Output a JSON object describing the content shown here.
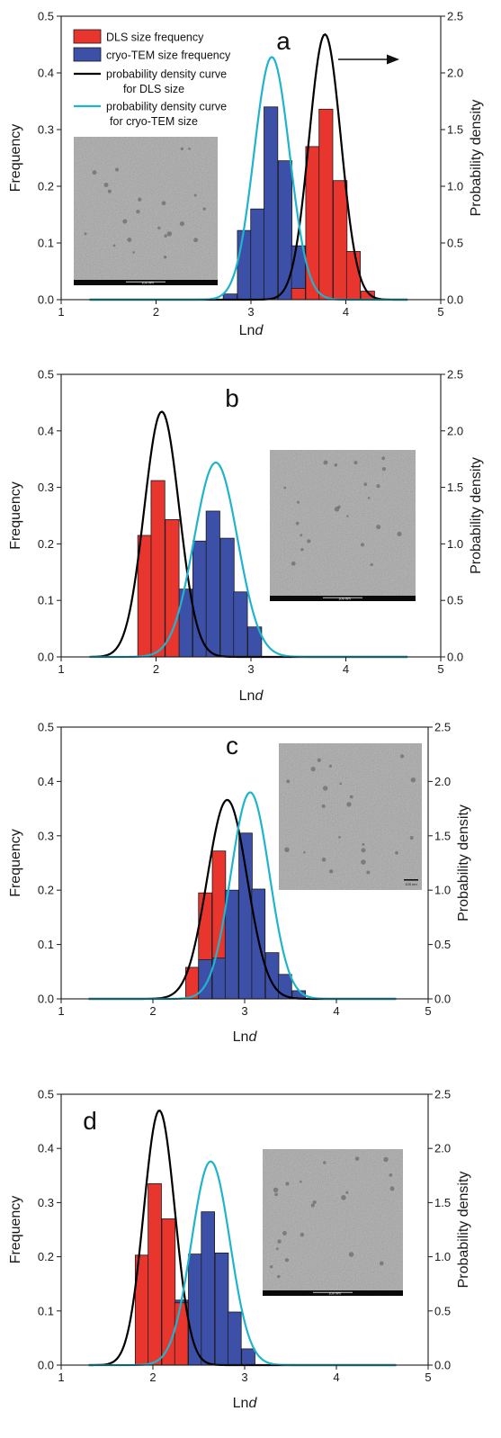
{
  "figure": {
    "colors": {
      "dls_bar": "#e8362e",
      "tem_bar": "#3d50a8",
      "dls_curve": "#000000",
      "tem_curve": "#1fb4cc",
      "bar_edge": "#1a1a1a"
    },
    "legend": [
      {
        "label": "DLS size frequency",
        "kind": "bar",
        "series": "dls"
      },
      {
        "label": "cryo-TEM size frequency",
        "kind": "bar",
        "series": "tem"
      },
      {
        "label": "probability density curve",
        "label2": "for DLS size",
        "kind": "line",
        "series": "dls_curve"
      },
      {
        "label": "probability density curve",
        "label2": "for cryo-TEM size",
        "kind": "line",
        "series": "tem_curve"
      }
    ]
  },
  "chart_data": [
    {
      "panel": "a",
      "type": "bar",
      "xlabel": "Ln",
      "xlabel_italic": "d",
      "ylabel": "Frequency",
      "y2label": "Probability density",
      "xlim": [
        1,
        5
      ],
      "ylim": [
        0,
        0.5
      ],
      "y2lim": [
        0,
        2.5
      ],
      "xticks": [
        "1",
        "2",
        "3",
        "4",
        "5"
      ],
      "yticks": [
        "0.0",
        "0.1",
        "0.2",
        "0.3",
        "0.4",
        "0.5"
      ],
      "y2ticks": [
        "0.0",
        "0.5",
        "1.0",
        "1.5",
        "2.0",
        "2.5"
      ],
      "bin_width": 0.145,
      "series": [
        {
          "name": "cryo-TEM size frequency",
          "kind": "tem",
          "x": [
            2.78,
            2.93,
            3.07,
            3.21,
            3.36,
            3.5,
            3.65
          ],
          "values": [
            0.01,
            0.122,
            0.16,
            0.34,
            0.245,
            0.095,
            0.02
          ]
        },
        {
          "name": "DLS size frequency",
          "kind": "dls",
          "x": [
            3.5,
            3.65,
            3.79,
            3.94,
            4.08,
            4.23
          ],
          "values": [
            0.02,
            0.27,
            0.336,
            0.21,
            0.085,
            0.015
          ]
        }
      ],
      "curves": [
        {
          "name": "probability density curve for DLS size",
          "kind": "dls_curve",
          "mu": 3.78,
          "sigma": 0.168,
          "peak": 2.34,
          "xrange": [
            1.3,
            4.65
          ]
        },
        {
          "name": "probability density curve for cryo-TEM size",
          "kind": "tem_curve",
          "mu": 3.22,
          "sigma": 0.187,
          "peak": 2.14,
          "xrange": [
            1.3,
            4.65
          ]
        }
      ],
      "arrow_direction": "right",
      "legend": true,
      "inset": {
        "position": "left",
        "scale_label": "100 nm",
        "scalebar": "bottom-center"
      }
    },
    {
      "panel": "b",
      "type": "bar",
      "xlabel": "Ln",
      "xlabel_italic": "d",
      "ylabel": "Frequency",
      "y2label": "Probability density",
      "xlim": [
        1,
        5
      ],
      "ylim": [
        0,
        0.5
      ],
      "y2lim": [
        0,
        2.5
      ],
      "xticks": [
        "1",
        "2",
        "3",
        "4",
        "5"
      ],
      "yticks": [
        "0.0",
        "0.1",
        "0.2",
        "0.3",
        "0.4",
        "0.5"
      ],
      "y2ticks": [
        "0.0",
        "0.5",
        "1.0",
        "1.5",
        "2.0",
        "2.5"
      ],
      "bin_width": 0.145,
      "series": [
        {
          "name": "cryo-TEM size frequency",
          "kind": "tem",
          "x": [
            2.02,
            2.17,
            2.31,
            2.46,
            2.6,
            2.75,
            2.89,
            3.04
          ],
          "values": [
            0.01,
            0.03,
            0.12,
            0.205,
            0.258,
            0.21,
            0.115,
            0.053
          ]
        },
        {
          "name": "DLS size frequency",
          "kind": "dls",
          "x": [
            1.88,
            2.02,
            2.17
          ],
          "values": [
            0.215,
            0.312,
            0.243
          ]
        }
      ],
      "curves": [
        {
          "name": "probability density curve for DLS size",
          "kind": "dls_curve",
          "mu": 2.06,
          "sigma": 0.184,
          "peak": 2.17,
          "xrange": [
            1.3,
            4.65
          ]
        },
        {
          "name": "probability density curve for cryo-TEM size",
          "kind": "tem_curve",
          "mu": 2.63,
          "sigma": 0.229,
          "peak": 1.72,
          "xrange": [
            1.3,
            4.65
          ]
        }
      ],
      "legend": false,
      "inset": {
        "position": "right",
        "scale_label": "100 nm",
        "scalebar": "bottom-center"
      }
    },
    {
      "panel": "c",
      "type": "bar",
      "xlabel": "Ln",
      "xlabel_italic": "d",
      "ylabel": "Frequency",
      "y2label": "Probability density",
      "xlim": [
        1,
        5
      ],
      "ylim": [
        0,
        0.5
      ],
      "y2lim": [
        0,
        2.5
      ],
      "xticks": [
        "1",
        "2",
        "3",
        "4",
        "5"
      ],
      "yticks": [
        "0.0",
        "0.1",
        "0.2",
        "0.3",
        "0.4",
        "0.5"
      ],
      "y2ticks": [
        "0.0",
        "0.5",
        "1.0",
        "1.5",
        "2.0",
        "2.5"
      ],
      "bin_width": 0.145,
      "series": [
        {
          "name": "DLS size frequency",
          "kind": "dls",
          "x": [
            2.57,
            2.72,
            2.86,
            3.01
          ],
          "values": [
            0.195,
            0.272,
            0.165,
            0.085
          ]
        },
        {
          "name": "cryo-TEM size frequency",
          "kind": "tem",
          "x": [
            2.57,
            2.72,
            2.86,
            3.01,
            3.15,
            3.3,
            3.44,
            3.59
          ],
          "values": [
            0.072,
            0.075,
            0.2,
            0.305,
            0.202,
            0.085,
            0.045,
            0.015
          ]
        }
      ],
      "extra_bars": [
        {
          "kind": "dls",
          "x": 2.43,
          "value": 0.058
        }
      ],
      "curves": [
        {
          "name": "probability density curve for DLS size",
          "kind": "dls_curve",
          "mu": 2.81,
          "sigma": 0.218,
          "peak": 1.83,
          "xrange": [
            1.3,
            4.65
          ]
        },
        {
          "name": "probability density curve for cryo-TEM size",
          "kind": "tem_curve",
          "mu": 3.06,
          "sigma": 0.21,
          "peak": 1.9,
          "xrange": [
            1.3,
            4.65
          ]
        }
      ],
      "legend": false,
      "inset": {
        "position": "right",
        "scale_label": "100 nm",
        "scalebar": "bottom-right"
      }
    },
    {
      "panel": "d",
      "type": "bar",
      "xlabel": "Ln",
      "xlabel_italic": "d",
      "ylabel": "Frequency",
      "y2label": "Probability density",
      "xlim": [
        1,
        5
      ],
      "ylim": [
        0,
        0.5
      ],
      "y2lim": [
        0,
        2.5
      ],
      "xticks": [
        "1",
        "2",
        "3",
        "4",
        "5"
      ],
      "yticks": [
        "0.0",
        "0.1",
        "0.2",
        "0.3",
        "0.4",
        "0.5"
      ],
      "y2ticks": [
        "0.0",
        "0.5",
        "1.0",
        "1.5",
        "2.0",
        "2.5"
      ],
      "bin_width": 0.145,
      "series": [
        {
          "name": "cryo-TEM size frequency",
          "kind": "tem",
          "x": [
            2.17,
            2.31,
            2.46,
            2.6,
            2.75,
            2.89,
            3.04
          ],
          "values": [
            0.035,
            0.12,
            0.205,
            0.283,
            0.207,
            0.098,
            0.03
          ]
        },
        {
          "name": "DLS size frequency",
          "kind": "dls",
          "x": [
            1.88,
            2.02,
            2.17,
            2.31
          ],
          "values": [
            0.203,
            0.335,
            0.27,
            0.115
          ]
        }
      ],
      "curves": [
        {
          "name": "probability density curve for DLS size",
          "kind": "dls_curve",
          "mu": 2.07,
          "sigma": 0.17,
          "peak": 2.35,
          "xrange": [
            1.3,
            4.65
          ]
        },
        {
          "name": "probability density curve for cryo-TEM size",
          "kind": "tem_curve",
          "mu": 2.63,
          "sigma": 0.21,
          "peak": 1.88,
          "xrange": [
            1.3,
            4.65
          ]
        }
      ],
      "legend": false,
      "inset": {
        "position": "right",
        "scale_label": "100 nm",
        "scalebar": "bottom-center"
      }
    }
  ]
}
